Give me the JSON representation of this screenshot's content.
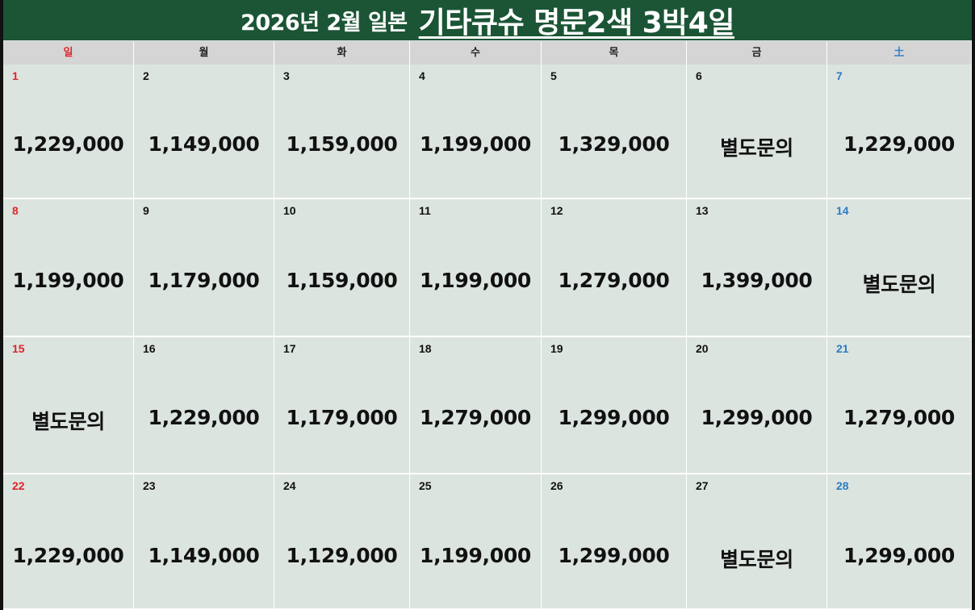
{
  "title": {
    "prefix": "2026년 2월 일본",
    "main": "기타큐슈 명문2색 3박4일"
  },
  "weekdays": [
    {
      "label": "일",
      "type": "sun"
    },
    {
      "label": "월",
      "type": "weekday"
    },
    {
      "label": "화",
      "type": "weekday"
    },
    {
      "label": "수",
      "type": "weekday"
    },
    {
      "label": "목",
      "type": "weekday"
    },
    {
      "label": "금",
      "type": "weekday"
    },
    {
      "label": "土",
      "type": "sat"
    }
  ],
  "colors": {
    "header_green": "#1b5535",
    "cell_bg": "#dce4df",
    "sunday_red": "#e0252b",
    "saturday_blue": "#2b7bc5"
  },
  "weeks": [
    [
      {
        "day": "1",
        "price": "1,229,000"
      },
      {
        "day": "2",
        "price": "1,149,000"
      },
      {
        "day": "3",
        "price": "1,159,000"
      },
      {
        "day": "4",
        "price": "1,199,000"
      },
      {
        "day": "5",
        "price": "1,329,000"
      },
      {
        "day": "6",
        "price": "별도문의"
      },
      {
        "day": "7",
        "price": "1,229,000"
      }
    ],
    [
      {
        "day": "8",
        "price": "1,199,000"
      },
      {
        "day": "9",
        "price": "1,179,000"
      },
      {
        "day": "10",
        "price": "1,159,000"
      },
      {
        "day": "11",
        "price": "1,199,000"
      },
      {
        "day": "12",
        "price": "1,279,000"
      },
      {
        "day": "13",
        "price": "1,399,000"
      },
      {
        "day": "14",
        "price": "별도문의"
      }
    ],
    [
      {
        "day": "15",
        "price": "별도문의"
      },
      {
        "day": "16",
        "price": "1,229,000"
      },
      {
        "day": "17",
        "price": "1,179,000"
      },
      {
        "day": "18",
        "price": "1,279,000"
      },
      {
        "day": "19",
        "price": "1,299,000"
      },
      {
        "day": "20",
        "price": "1,299,000"
      },
      {
        "day": "21",
        "price": "1,279,000"
      }
    ],
    [
      {
        "day": "22",
        "price": "1,229,000"
      },
      {
        "day": "23",
        "price": "1,149,000"
      },
      {
        "day": "24",
        "price": "1,129,000"
      },
      {
        "day": "25",
        "price": "1,199,000"
      },
      {
        "day": "26",
        "price": "1,299,000"
      },
      {
        "day": "27",
        "price": "별도문의"
      },
      {
        "day": "28",
        "price": "1,299,000"
      }
    ]
  ]
}
